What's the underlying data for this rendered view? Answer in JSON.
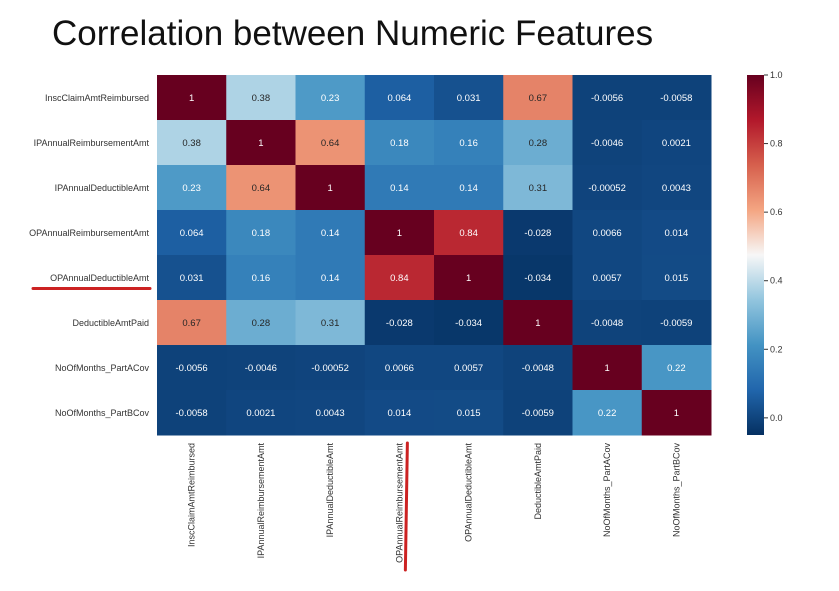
{
  "page_title": "Correlation between Numeric Features",
  "chart_data": {
    "type": "heatmap",
    "title": "",
    "rows": [
      "InscClaimAmtReimbursed",
      "IPAnnualReimbursementAmt",
      "IPAnnualDeductibleAmt",
      "OPAnnualReimbursementAmt",
      "OPAnnualDeductibleAmt",
      "DeductibleAmtPaid",
      "NoOfMonths_PartACov",
      "NoOfMonths_PartBCov"
    ],
    "columns": [
      "InscClaimAmtReimbursed",
      "IPAnnualReimbursementAmt",
      "IPAnnualDeductibleAmt",
      "OPAnnualReimbursementAmt",
      "OPAnnualDeductibleAmt",
      "DeductibleAmtPaid",
      "NoOfMonths_PartACov",
      "NoOfMonths_PartBCov"
    ],
    "values": [
      [
        1,
        0.38,
        0.23,
        0.064,
        0.031,
        0.67,
        -0.0056,
        -0.0058
      ],
      [
        0.38,
        1,
        0.64,
        0.18,
        0.16,
        0.28,
        -0.0046,
        0.0021
      ],
      [
        0.23,
        0.64,
        1,
        0.14,
        0.14,
        0.31,
        -0.00052,
        0.0043
      ],
      [
        0.064,
        0.18,
        0.14,
        1,
        0.84,
        -0.028,
        0.0066,
        0.014
      ],
      [
        0.031,
        0.16,
        0.14,
        0.84,
        1,
        -0.034,
        0.0057,
        0.015
      ],
      [
        0.67,
        0.28,
        0.31,
        -0.028,
        -0.034,
        1,
        -0.0048,
        -0.0059
      ],
      [
        -0.0056,
        -0.0046,
        -0.00052,
        0.0066,
        0.0057,
        -0.0048,
        1,
        0.22
      ],
      [
        -0.0058,
        0.0021,
        0.0043,
        0.014,
        0.015,
        -0.0059,
        0.22,
        1
      ]
    ],
    "colormap": "RdBu_r",
    "colorbar": {
      "range": [
        -0.05,
        1.0
      ],
      "ticks": [
        "0.0",
        "0.2",
        "0.4",
        "0.6",
        "0.8",
        "1.0"
      ],
      "tick_values": [
        0,
        0.2,
        0.4,
        0.6,
        0.8,
        1.0
      ]
    },
    "annotations": true,
    "highlights": [
      {
        "axis": "row",
        "label": "OPAnnualDeductibleAmt",
        "style": "red underline"
      },
      {
        "axis": "column",
        "label": "OPAnnualReimbursementAmt",
        "style": "red underline"
      }
    ],
    "highlight_color": "#cc2222"
  }
}
